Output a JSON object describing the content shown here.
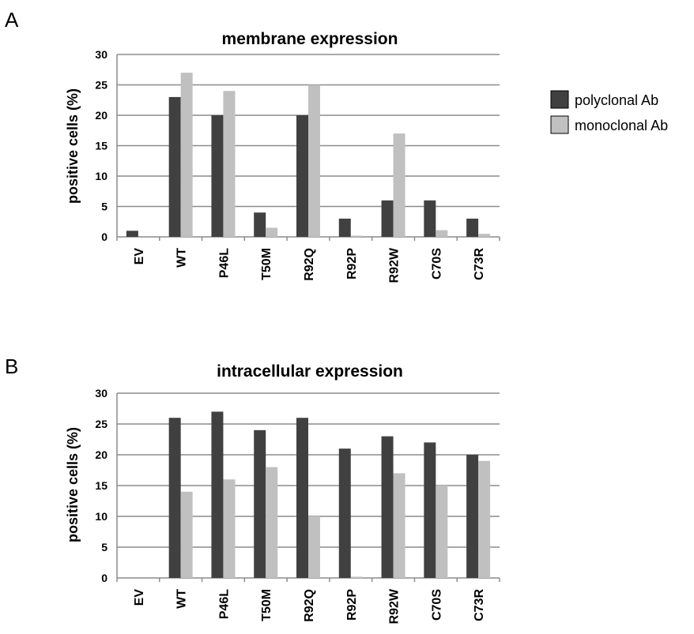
{
  "legend": [
    {
      "label": "polyclonal Ab",
      "color": "#404040"
    },
    {
      "label": "monoclonal Ab",
      "color": "#c0c0c0"
    }
  ],
  "chart_data": [
    {
      "type": "bar",
      "panel": "A",
      "title": "membrane expression",
      "ylabel": "positive cells (%)",
      "xlabel": "",
      "ylim": [
        0,
        30
      ],
      "yticks": [
        0,
        5,
        10,
        15,
        20,
        25,
        30
      ],
      "grid": true,
      "legend_position": "right",
      "categories": [
        "EV",
        "WT",
        "P46L",
        "T50M",
        "R92Q",
        "R92P",
        "R92W",
        "C70S",
        "C73R"
      ],
      "series": [
        {
          "name": "polyclonal Ab",
          "color": "#404040",
          "values": [
            1,
            23,
            20,
            4,
            20,
            3,
            6,
            6,
            3
          ]
        },
        {
          "name": "monoclonal Ab",
          "color": "#c0c0c0",
          "values": [
            0,
            27,
            24,
            1.5,
            25,
            0.2,
            17,
            1.1,
            0.5
          ]
        }
      ]
    },
    {
      "type": "bar",
      "panel": "B",
      "title": "intracellular expression",
      "ylabel": "positive cells (%)",
      "xlabel": "",
      "ylim": [
        0,
        30
      ],
      "yticks": [
        0,
        5,
        10,
        15,
        20,
        25,
        30
      ],
      "grid": true,
      "categories": [
        "EV",
        "WT",
        "P46L",
        "T50M",
        "R92Q",
        "R92P",
        "R92W",
        "C70S",
        "C73R"
      ],
      "series": [
        {
          "name": "polyclonal Ab",
          "color": "#404040",
          "values": [
            0,
            26,
            27,
            24,
            26,
            21,
            23,
            22,
            20
          ]
        },
        {
          "name": "monoclonal Ab",
          "color": "#c0c0c0",
          "values": [
            0,
            14,
            16,
            18,
            10,
            0.2,
            17,
            15,
            19
          ]
        }
      ]
    }
  ]
}
